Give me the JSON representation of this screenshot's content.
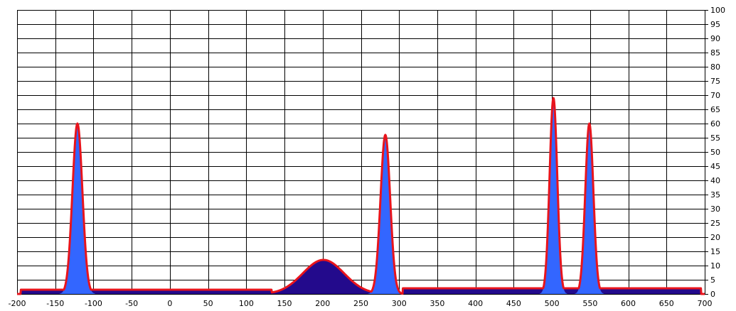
{
  "chart_data": {
    "type": "area",
    "title": "",
    "xlabel": "",
    "ylabel": "",
    "xlim": [
      -200,
      700
    ],
    "ylim": [
      0,
      100
    ],
    "x_ticks": [
      -200,
      -150,
      -100,
      -50,
      0,
      50,
      100,
      150,
      200,
      250,
      300,
      350,
      400,
      450,
      500,
      550,
      600,
      650,
      700
    ],
    "y_ticks": [
      0,
      5,
      10,
      15,
      20,
      25,
      30,
      35,
      40,
      45,
      50,
      55,
      60,
      65,
      70,
      75,
      80,
      85,
      90,
      95,
      100
    ],
    "y_axis_side": "right",
    "grid": true,
    "legend": "none",
    "colors": {
      "outline": "#e8141c",
      "narrow_peak_fill": "#3366ff",
      "band_fill": "#230a8c",
      "grid": "#000000",
      "background": "#ffffff"
    },
    "series": [
      {
        "kind": "baseline",
        "segments": [
          {
            "x": [
              -195,
              133
            ],
            "y": 1.5
          },
          {
            "x": [
              305,
              695
            ],
            "y": 2
          }
        ]
      },
      {
        "kind": "gaussian_peaks",
        "peaks": [
          {
            "center": -121,
            "height": 60,
            "sigma": 6.5,
            "fill": "narrow"
          },
          {
            "center": 201,
            "height": 12,
            "sigma": 27,
            "fill": "band"
          },
          {
            "center": 282,
            "height": 56,
            "sigma": 6.3,
            "fill": "narrow"
          },
          {
            "center": 502,
            "height": 69,
            "sigma": 5.0,
            "fill": "narrow"
          },
          {
            "center": 549,
            "height": 60,
            "sigma": 5.3,
            "fill": "narrow"
          }
        ]
      }
    ]
  }
}
